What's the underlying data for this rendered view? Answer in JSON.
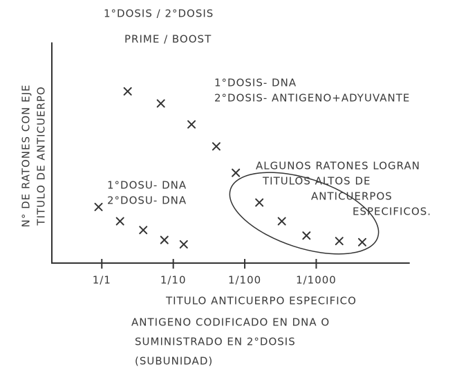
{
  "chart_data": {
    "type": "scatter",
    "title": [
      "1°DOSIS / 2°DOSIS",
      "PRIME / BOOST"
    ],
    "y_label": [
      "N° DE RATONES CON EJE",
      "TITULO DE ANTICUERPO"
    ],
    "x_label": [
      "TITULO ANTICUERPO ESPECIFICO",
      "ANTIGENO CODIFICADO EN DNA O",
      "SUMINISTRADO EN 2°DOSIS",
      "(SUBUNIDAD)"
    ],
    "x_scale": "log",
    "xlim": [
      0.2,
      20000
    ],
    "xticks": [
      {
        "value": 1,
        "label": "1/1"
      },
      {
        "value": 10,
        "label": "1/10"
      },
      {
        "value": 100,
        "label": "1/100"
      },
      {
        "value": 1000,
        "label": "1/1000"
      }
    ],
    "ylim": [
      0,
      10
    ],
    "series": [
      {
        "color": "#333333",
        "x": [
          2.3,
          6.7,
          18,
          40,
          75,
          160,
          330,
          730,
          2100,
          4400
        ],
        "values": [
          7.8,
          7.25,
          6.3,
          5.3,
          4.1,
          2.75,
          1.9,
          1.25,
          1.0,
          0.95
        ]
      },
      {
        "color": "#333333",
        "x": [
          0.9,
          1.8,
          3.8,
          7.5,
          14
        ],
        "values": [
          2.55,
          1.9,
          1.5,
          1.05,
          0.85
        ]
      }
    ],
    "annotations": [
      {
        "lines": [
          "1°DOSIS- DNA",
          "2°DOSIS- ANTIGENO+ADYUVANTE"
        ]
      },
      {
        "lines": [
          "ALGUNOS RATONES LOGRAN",
          "TITULOS ALTOS DE",
          "ANTICUERPOS",
          "ESPECIFICOS."
        ]
      },
      {
        "lines": [
          "1°DOSU- DNA",
          "2°DOSU- DNA"
        ]
      }
    ]
  }
}
